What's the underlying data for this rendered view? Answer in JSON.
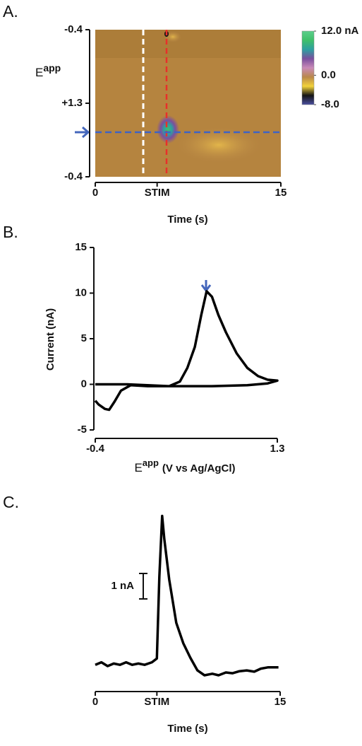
{
  "chart_data": [
    {
      "type": "colorplot",
      "label": "A.",
      "ylabel": {
        "main": "E",
        "sup": "app"
      },
      "yticklabels": [
        "-0.4",
        "+1.3",
        "-0.4"
      ],
      "xlabel": "Time (s)",
      "xlim": [
        0,
        15
      ],
      "xticks": [
        0,
        {
          "value": 5,
          "label": "STIM"
        },
        15
      ],
      "clim": [
        -8,
        12
      ],
      "cticks": [
        {
          "value": 12,
          "label": "12.0 nA"
        },
        {
          "value": 0,
          "label": "0.0"
        },
        {
          "value": -8,
          "label": "-8.0"
        }
      ],
      "colormap": [
        "#4a4fa0",
        "#141414",
        "#f2d23a",
        "#b9884a",
        "#c98ab8",
        "#7a4f9e",
        "#2e9fa0",
        "#3fbf6a",
        "#5ccf8a"
      ]
    },
    {
      "type": "line",
      "label": "B.",
      "ylabel": "Current (nA)",
      "xlabel": {
        "main": "E",
        "sup": "app",
        "rest": "(V vs Ag/AgCl)"
      },
      "xlim": [
        -0.4,
        1.3
      ],
      "xticks": [
        -0.4,
        1.3
      ],
      "ylim": [
        -5,
        15
      ],
      "yticks": [
        -5,
        0,
        5,
        10,
        15
      ],
      "color": "#000000",
      "marker_color": "#4466bb",
      "x": [
        -0.4,
        -0.1,
        0.29,
        0.39,
        0.46,
        0.53,
        0.59,
        0.64,
        0.69,
        0.75,
        0.82,
        0.92,
        1.02,
        1.12,
        1.21,
        1.3,
        1.21,
        1.02,
        0.69,
        0.36,
        0.09,
        -0.07,
        -0.16,
        -0.22,
        -0.27,
        -0.31,
        -0.37,
        -0.4
      ],
      "values": [
        0,
        0,
        -0.2,
        0.3,
        1.8,
        4.1,
        7.6,
        10.2,
        9.6,
        7.6,
        5.7,
        3.4,
        1.8,
        0.9,
        0.5,
        0.4,
        0.1,
        -0.1,
        -0.2,
        -0.2,
        -0.2,
        -0.1,
        -0.7,
        -1.9,
        -2.8,
        -2.7,
        -2.2,
        -1.8
      ]
    },
    {
      "type": "trace",
      "label": "C.",
      "xlabel": "Time (s)",
      "xlim": [
        0,
        15
      ],
      "xticks": [
        0,
        {
          "value": 5,
          "label": "STIM"
        },
        15
      ],
      "ylim": [
        -1,
        6
      ],
      "scalebar": {
        "value": 1,
        "label": "1 nA"
      },
      "color": "#000000",
      "x": [
        0,
        0.5,
        1,
        1.5,
        2,
        2.5,
        3,
        3.5,
        4,
        4.6,
        5.0,
        5.2,
        5.43,
        5.6,
        6.0,
        6.57,
        7.14,
        7.71,
        8.29,
        8.86,
        9.5,
        10,
        10.6,
        11.14,
        11.7,
        12.29,
        12.9,
        13.43,
        14,
        14.86
      ],
      "values": [
        0.05,
        0.15,
        0.0,
        0.1,
        0.05,
        0.15,
        0.05,
        0.1,
        0.05,
        0.15,
        0.3,
        3.5,
        5.9,
        5.0,
        3.4,
        1.7,
        0.9,
        0.33,
        -0.17,
        -0.36,
        -0.3,
        -0.36,
        -0.25,
        -0.28,
        -0.2,
        -0.17,
        -0.22,
        -0.1,
        -0.05,
        -0.05
      ]
    }
  ]
}
